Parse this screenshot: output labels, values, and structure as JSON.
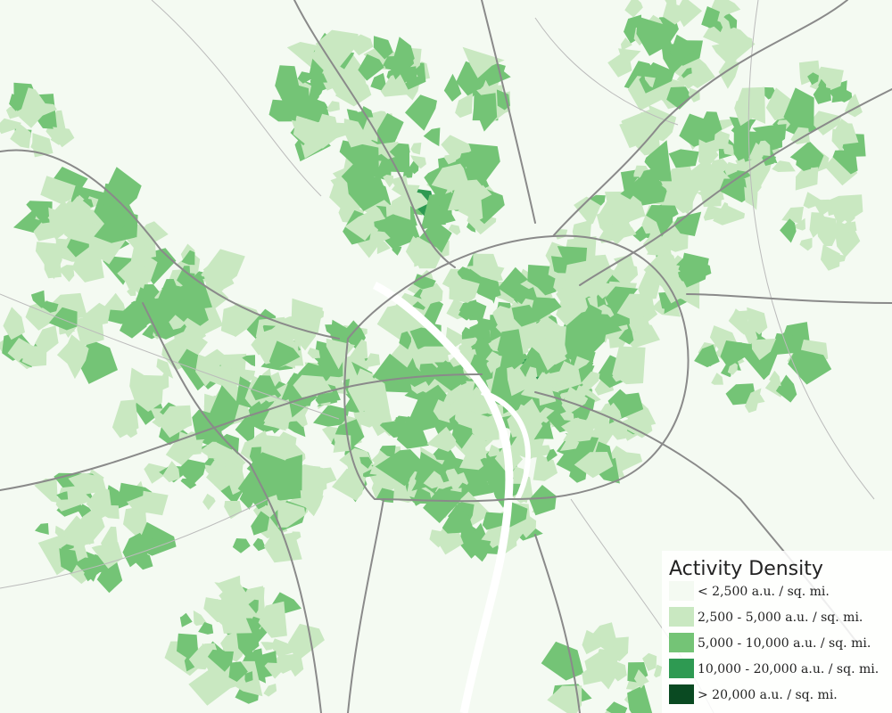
{
  "legend": {
    "title": "Activity Density",
    "items": [
      {
        "label": "< 2,500 a.u. / sq. mi.",
        "color": "#f4faf2"
      },
      {
        "label": "2,500 - 5,000 a.u. / sq. mi.",
        "color": "#c9e8c1"
      },
      {
        "label": "5,000 - 10,000 a.u. / sq. mi.",
        "color": "#74c476"
      },
      {
        "label": "10,000 - 20,000 a.u. / sq. mi.",
        "color": "#2e9a52"
      },
      {
        "label": "> 20,000 a.u. / sq. mi.",
        "color": "#0a4a22"
      }
    ]
  }
}
